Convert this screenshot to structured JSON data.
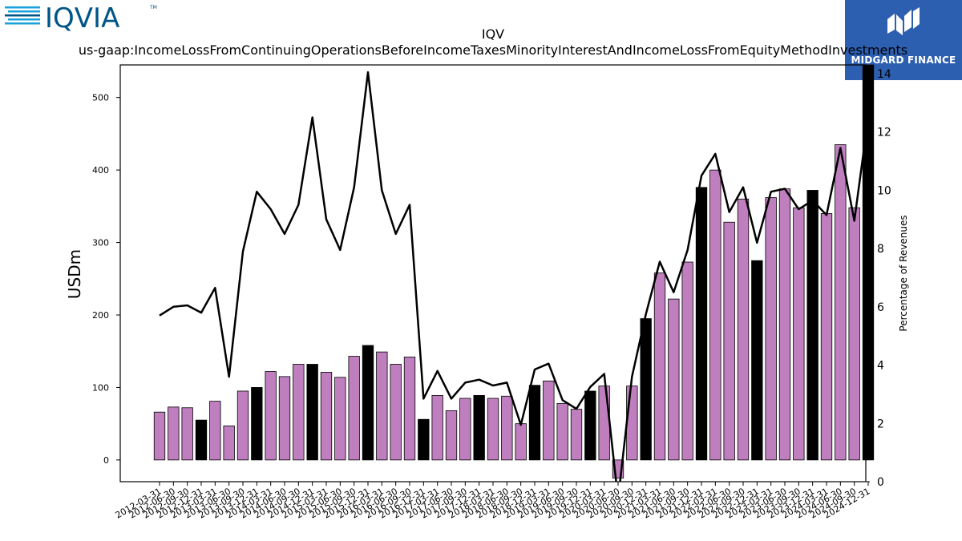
{
  "branding": {
    "left_logo_text": "IQVIA",
    "left_logo_tm": "TM",
    "right_logo_text": "MIDGARD FINANCE",
    "colors": {
      "iqvia_dark": "#005587",
      "iqvia_light": "#19a3dc",
      "midgard_bg": "#2d5fb1"
    }
  },
  "chart_data": {
    "type": "bar",
    "title": "IQV",
    "subtitle": "us-gaap:IncomeLossFromContinuingOperationsBeforeIncomeTaxesMinorityInterestAndIncomeLossFromEquityMethodInvestments",
    "ylabel": "USDm",
    "y2label": "Percentage of Revenues",
    "ylim": [
      -30,
      545
    ],
    "y2lim": [
      0,
      14.3
    ],
    "yticks": [
      0,
      100,
      200,
      300,
      400,
      500
    ],
    "y2ticks": [
      0,
      2,
      4,
      6,
      8,
      10,
      12,
      14
    ],
    "categories": [
      "2012-03-31",
      "2012-06-30",
      "2012-09-30",
      "2012-12-31",
      "2013-03-31",
      "2013-06-30",
      "2013-09-30",
      "2013-12-31",
      "2014-03-31",
      "2014-06-30",
      "2014-09-30",
      "2014-12-31",
      "2015-03-31",
      "2015-06-30",
      "2015-09-30",
      "2015-12-31",
      "2016-03-31",
      "2016-06-30",
      "2016-09-30",
      "2016-12-31",
      "2017-03-31",
      "2017-06-30",
      "2017-09-30",
      "2017-12-31",
      "2018-03-31",
      "2018-06-30",
      "2018-09-30",
      "2018-12-31",
      "2019-03-31",
      "2019-06-30",
      "2019-09-30",
      "2019-12-31",
      "2020-03-31",
      "2020-06-30",
      "2020-09-30",
      "2020-12-31",
      "2021-03-31",
      "2021-06-30",
      "2021-09-30",
      "2021-12-31",
      "2022-03-31",
      "2022-06-30",
      "2022-09-30",
      "2022-12-31",
      "2023-03-31",
      "2023-06-30",
      "2023-09-30",
      "2023-12-31",
      "2024-03-31",
      "2024-06-30",
      "2024-09-30",
      "2024-12-31"
    ],
    "series": [
      {
        "values": [
          66,
          73,
          72,
          55,
          81,
          47,
          95,
          100,
          122,
          115,
          132,
          132,
          121,
          114,
          143,
          158,
          149,
          132,
          142,
          56,
          89,
          68,
          85,
          89,
          85,
          88,
          50,
          103,
          109,
          78,
          70,
          95,
          102,
          -25,
          102,
          195,
          258,
          222,
          273,
          376,
          400,
          328,
          360,
          275,
          362,
          374,
          348,
          372,
          340,
          435,
          348,
          545
        ]
      },
      {
        "values": [
          5.7,
          6.0,
          6.05,
          5.8,
          6.65,
          3.6,
          7.9,
          9.95,
          9.35,
          8.5,
          9.5,
          12.5,
          9.0,
          7.95,
          10.1,
          14.05,
          10.0,
          8.5,
          9.5,
          2.85,
          3.8,
          2.85,
          3.4,
          3.5,
          3.3,
          3.4,
          1.95,
          3.85,
          4.05,
          2.8,
          2.5,
          3.25,
          3.7,
          -0.6,
          3.6,
          5.75,
          7.55,
          6.5,
          7.95,
          10.5,
          11.25,
          9.25,
          10.1,
          8.2,
          9.95,
          10.05,
          9.35,
          9.65,
          9.15,
          11.45,
          8.95,
          12.5
        ]
      }
    ],
    "highlight_color": "#000000",
    "bar_color": "#bf7fbf",
    "line_color": "#000000"
  }
}
